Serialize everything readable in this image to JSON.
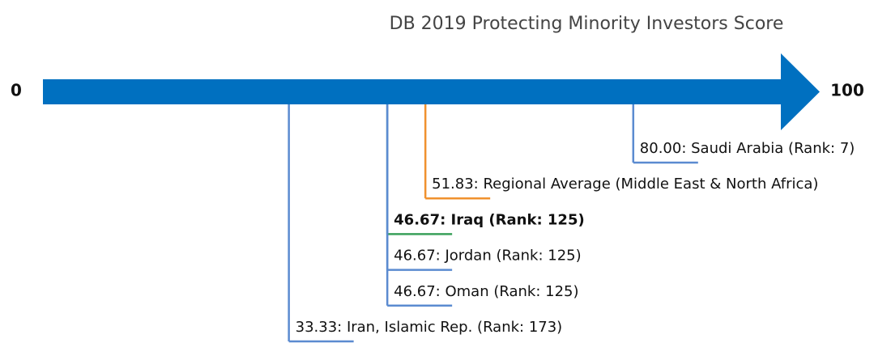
{
  "chart_data": {
    "type": "numberline",
    "title": "DB 2019 Protecting Minority Investors Score",
    "xlim": [
      0,
      100
    ],
    "xticks": [
      0,
      100
    ],
    "axis_color": "#0070c0",
    "markers": [
      {
        "label": "80.00: Saudi Arabia (Rank: 7)",
        "value": 80,
        "color": "#5b8bd0",
        "bold": false
      },
      {
        "label": "51.83: Regional Average (Middle East & North Africa)",
        "value": 51.83,
        "color": "#f0912e",
        "bold": false
      },
      {
        "label": "46.67: Iraq (Rank: 125)",
        "value": 46.67,
        "color": "#3aa05a",
        "bold": true
      },
      {
        "label": "46.67: Jordan (Rank: 125)",
        "value": 46.67,
        "color": "#5b8bd0",
        "bold": false
      },
      {
        "label": "46.67: Oman (Rank: 125)",
        "value": 46.67,
        "color": "#5b8bd0",
        "bold": false
      },
      {
        "label": "33.33: Iran, Islamic Rep. (Rank: 173)",
        "value": 33.33,
        "color": "#5b8bd0",
        "bold": false
      }
    ]
  }
}
